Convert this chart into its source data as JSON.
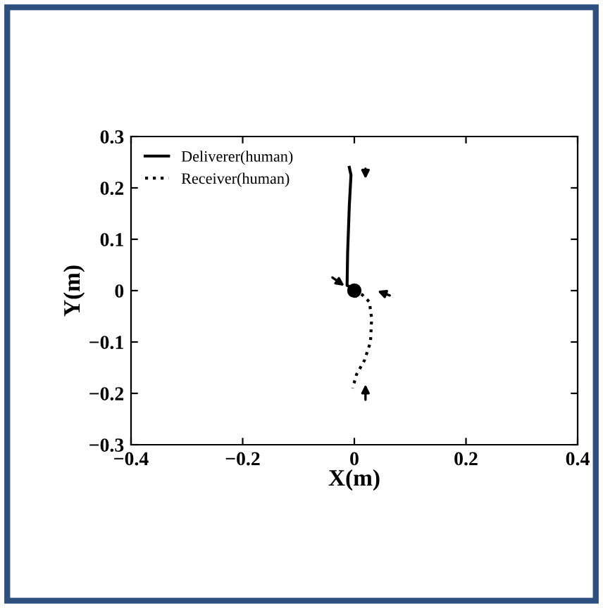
{
  "chart_data": {
    "type": "line",
    "xlabel": "X(m)",
    "ylabel": "Y(m)",
    "xlim": [
      -0.4,
      0.4
    ],
    "ylim": [
      -0.3,
      0.3
    ],
    "xticks": [
      {
        "value": -0.4,
        "label": "−0.4"
      },
      {
        "value": -0.2,
        "label": "−0.2"
      },
      0,
      0.2,
      0.4
    ],
    "yticks": [
      {
        "value": -0.3,
        "label": "−0.3"
      },
      {
        "value": -0.2,
        "label": "−0.2"
      },
      {
        "value": -0.1,
        "label": "−0.1"
      },
      0,
      0.1,
      0.2,
      0.3
    ],
    "grid": false,
    "legend": "top left",
    "series": [
      {
        "name": "Deliverer(human)",
        "color": "#000000",
        "line_style": "solid",
        "x": [
          -0.009,
          -0.006,
          -0.009,
          -0.012,
          -0.013,
          0.0
        ],
        "values": [
          0.24,
          0.225,
          0.165,
          0.074,
          0.01,
          0.003
        ]
      },
      {
        "name": "Receiver(human)",
        "color": "#000000",
        "line_style": "dotted",
        "x": [
          0.0,
          0.014,
          0.027,
          0.031,
          0.029,
          0.018,
          0.004,
          -0.003
        ],
        "values": [
          0.0,
          -0.008,
          -0.022,
          -0.054,
          -0.1,
          -0.136,
          -0.163,
          -0.19
        ]
      },
      {
        "type": "scatter",
        "color": "#000000",
        "marker": "circle",
        "x": [
          0.0
        ],
        "values": [
          0.0
        ]
      }
    ]
  }
}
